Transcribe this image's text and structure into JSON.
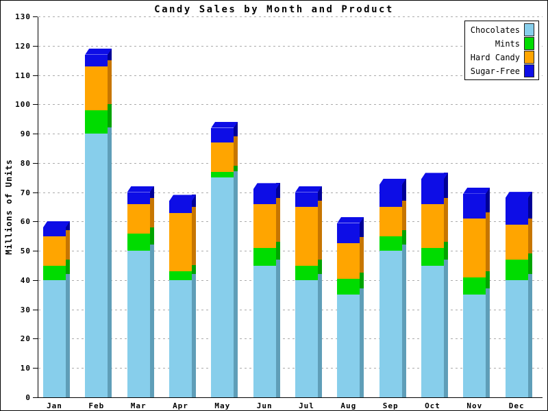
{
  "chart_data": {
    "type": "bar",
    "variant": "stacked-3d",
    "title": "Candy Sales by Month and Product",
    "xlabel": "",
    "ylabel": "Millions of Units",
    "ylim": [
      0,
      130
    ],
    "ytick_step": 10,
    "yticks": [
      0,
      10,
      20,
      30,
      40,
      50,
      60,
      70,
      80,
      90,
      100,
      110,
      120,
      130
    ],
    "grid": "horizontal-dashed",
    "legend_position": "top-right",
    "categories": [
      "Jan",
      "Feb",
      "Mar",
      "Apr",
      "May",
      "Jun",
      "Jul",
      "Aug",
      "Sep",
      "Oct",
      "Nov",
      "Dec"
    ],
    "series": [
      {
        "name": "Chocolates",
        "color": "#87CEEB",
        "side_color": "#5F9EB8",
        "values": [
          40,
          90,
          50,
          40,
          75,
          45,
          40,
          35,
          50,
          45,
          35,
          40
        ]
      },
      {
        "name": "Mints",
        "color": "#00DC00",
        "side_color": "#00A400",
        "values": [
          5,
          8,
          6,
          3,
          2,
          6,
          5,
          5.5,
          5,
          6,
          6,
          7
        ]
      },
      {
        "name": "Hard Candy",
        "color": "#FFA500",
        "side_color": "#C77600",
        "values": [
          10,
          15,
          10,
          20,
          10,
          15,
          20,
          12,
          10,
          15,
          20,
          12
        ]
      },
      {
        "name": "Sugar-Free",
        "color": "#0D0DE6",
        "side_color": "#000096",
        "values": [
          3,
          4,
          4,
          4,
          5,
          5,
          5,
          7,
          7.5,
          8.5,
          8.5,
          9
        ]
      }
    ],
    "totals": [
      58,
      117,
      70,
      67,
      92,
      71,
      70,
      59.5,
      72.5,
      74.5,
      69.5,
      68
    ],
    "colors": {
      "background": "#ffffff",
      "gridline": "#aaaaaa",
      "axis": "#000000",
      "text": "#000000"
    }
  }
}
